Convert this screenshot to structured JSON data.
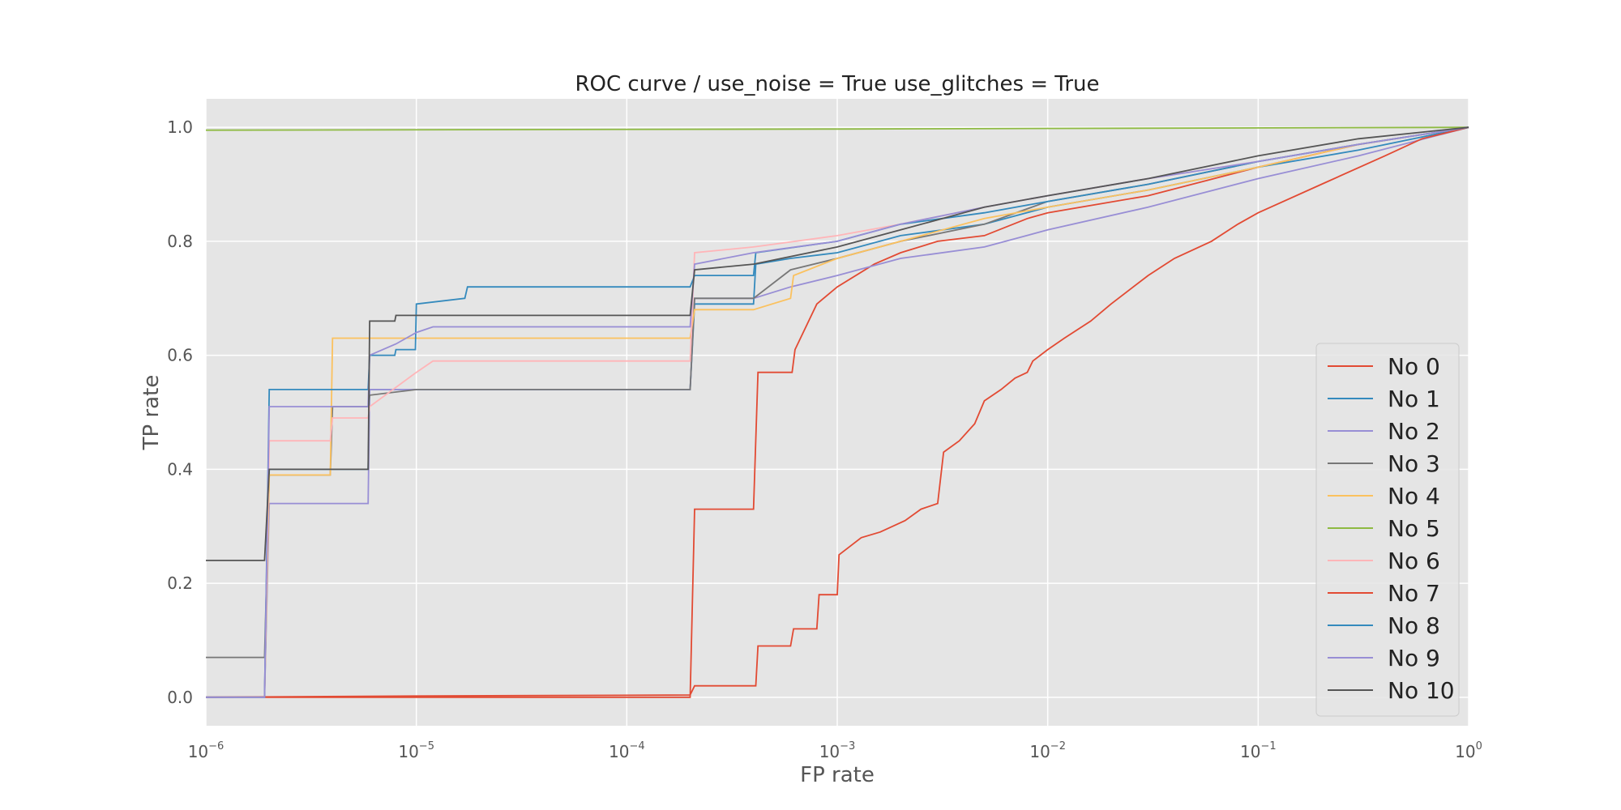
{
  "chart_data": {
    "type": "line",
    "title": "ROC curve / use_noise = True  use_glitches = True",
    "xlabel": "FP rate",
    "ylabel": "TP rate",
    "xscale": "log",
    "xlim": [
      1e-06,
      1
    ],
    "ylim": [
      -0.05,
      1.05
    ],
    "x_ticks": [
      {
        "base": "10",
        "exp": "−6"
      },
      {
        "base": "10",
        "exp": "−5"
      },
      {
        "base": "10",
        "exp": "−4"
      },
      {
        "base": "10",
        "exp": "−3"
      },
      {
        "base": "10",
        "exp": "−2"
      },
      {
        "base": "10",
        "exp": "−1"
      },
      {
        "base": "10",
        "exp": "0"
      }
    ],
    "y_ticks": [
      "0.0",
      "0.2",
      "0.4",
      "0.6",
      "0.8",
      "1.0"
    ],
    "y_tick_values": [
      0,
      0.2,
      0.4,
      0.6,
      0.8,
      1.0
    ],
    "grid": true,
    "legend_position": "lower-right",
    "series": [
      {
        "name": "No 0",
        "color": "#e24a33",
        "x": [
          1e-06,
          2e-06,
          4e-06,
          6e-06,
          1e-05,
          0.0002,
          0.00021,
          0.0004,
          0.00042,
          0.00061,
          0.00063,
          0.0008,
          0.001,
          0.0015,
          0.002,
          0.003,
          0.005,
          0.008,
          0.01,
          0.03,
          0.1,
          0.3,
          1
        ],
        "y": [
          0,
          0,
          0,
          0,
          0,
          0.0,
          0.33,
          0.33,
          0.57,
          0.57,
          0.61,
          0.69,
          0.72,
          0.76,
          0.78,
          0.8,
          0.81,
          0.84,
          0.85,
          0.88,
          0.93,
          0.97,
          1.0
        ]
      },
      {
        "name": "No 1",
        "color": "#348abd",
        "x": [
          1e-06,
          1.9e-06,
          2e-06,
          3.9e-06,
          4e-06,
          5.9e-06,
          6e-06,
          1e-05,
          0.0002,
          0.00021,
          0.0004,
          0.00041,
          0.0006,
          0.001,
          0.002,
          0.005,
          0.01,
          0.03,
          0.1,
          0.3,
          1
        ],
        "y": [
          0,
          0,
          0.4,
          0.4,
          0.4,
          0.4,
          0.54,
          0.54,
          0.54,
          0.69,
          0.69,
          0.76,
          0.77,
          0.78,
          0.81,
          0.83,
          0.86,
          0.89,
          0.93,
          0.96,
          1.0
        ]
      },
      {
        "name": "No 2",
        "color": "#988ed5",
        "x": [
          1e-06,
          1.9e-06,
          2e-06,
          3.9e-06,
          4e-06,
          5.9e-06,
          6e-06,
          1e-05,
          0.0002,
          0.00021,
          0.0004,
          0.0006,
          0.001,
          0.002,
          0.005,
          0.01,
          0.03,
          0.1,
          0.3,
          1
        ],
        "y": [
          0,
          0,
          0.34,
          0.34,
          0.34,
          0.34,
          0.54,
          0.54,
          0.54,
          0.7,
          0.7,
          0.72,
          0.74,
          0.77,
          0.79,
          0.82,
          0.86,
          0.91,
          0.95,
          1.0
        ]
      },
      {
        "name": "No 3",
        "color": "#777777",
        "x": [
          1e-06,
          1.9e-06,
          2e-06,
          3.9e-06,
          4e-06,
          5.9e-06,
          6e-06,
          1e-05,
          0.0002,
          0.00021,
          0.0004,
          0.0006,
          0.001,
          0.002,
          0.005,
          0.01,
          0.03,
          0.1,
          0.3,
          1
        ],
        "y": [
          0.07,
          0.07,
          0.39,
          0.39,
          0.51,
          0.51,
          0.53,
          0.54,
          0.54,
          0.7,
          0.7,
          0.75,
          0.77,
          0.8,
          0.83,
          0.87,
          0.9,
          0.94,
          0.97,
          1.0
        ]
      },
      {
        "name": "No 4",
        "color": "#fbc15e",
        "x": [
          1e-06,
          1.9e-06,
          2e-06,
          3.9e-06,
          4e-06,
          1e-05,
          0.0002,
          0.00021,
          0.0004,
          0.0006,
          0.00062,
          0.001,
          0.002,
          0.005,
          0.01,
          0.03,
          0.1,
          0.3,
          1
        ],
        "y": [
          0,
          0,
          0.39,
          0.39,
          0.63,
          0.63,
          0.63,
          0.68,
          0.68,
          0.7,
          0.74,
          0.77,
          0.8,
          0.84,
          0.86,
          0.89,
          0.93,
          0.97,
          1.0
        ]
      },
      {
        "name": "No 5",
        "color": "#8eba42",
        "x": [
          1e-06,
          0.001,
          1
        ],
        "y": [
          0.995,
          0.997,
          1.0
        ]
      },
      {
        "name": "No 6",
        "color": "#ffb5b8",
        "x": [
          1e-06,
          1.9e-06,
          2e-06,
          3.9e-06,
          4e-06,
          5.9e-06,
          6e-06,
          1e-05,
          1.2e-05,
          0.0002,
          0.00021,
          0.0004,
          0.001,
          0.002,
          0.005,
          0.01,
          0.03,
          0.1,
          0.3,
          1
        ],
        "y": [
          0,
          0,
          0.45,
          0.45,
          0.49,
          0.49,
          0.51,
          0.57,
          0.59,
          0.59,
          0.78,
          0.79,
          0.81,
          0.83,
          0.86,
          0.88,
          0.91,
          0.94,
          0.97,
          1.0
        ]
      },
      {
        "name": "No 7",
        "color": "#e24a33",
        "x": [
          1e-06,
          8e-06,
          0.0002,
          0.00021,
          0.00041,
          0.00042,
          0.0006,
          0.00062,
          0.0008,
          0.00082,
          0.001,
          0.00102,
          0.0013,
          0.0016,
          0.0021,
          0.0025,
          0.003,
          0.0032,
          0.0038,
          0.0045,
          0.005,
          0.006,
          0.007,
          0.008,
          0.0085,
          0.01,
          0.012,
          0.016,
          0.02,
          0.03,
          0.04,
          0.06,
          0.08,
          0.1,
          0.2,
          0.4,
          0.6,
          1
        ],
        "y": [
          0,
          0.002,
          0.004,
          0.02,
          0.02,
          0.09,
          0.09,
          0.12,
          0.12,
          0.18,
          0.18,
          0.25,
          0.28,
          0.29,
          0.31,
          0.33,
          0.34,
          0.43,
          0.45,
          0.48,
          0.52,
          0.54,
          0.56,
          0.57,
          0.59,
          0.61,
          0.63,
          0.66,
          0.69,
          0.74,
          0.77,
          0.8,
          0.83,
          0.85,
          0.9,
          0.95,
          0.98,
          1.0
        ]
      },
      {
        "name": "No 8",
        "color": "#348abd",
        "x": [
          1e-06,
          1.9e-06,
          2e-06,
          3.9e-06,
          4e-06,
          5.9e-06,
          6e-06,
          7.9e-06,
          8e-06,
          9.9e-06,
          1e-05,
          1.7e-05,
          1.75e-05,
          0.0002,
          0.00021,
          0.0004,
          0.00041,
          0.001,
          0.002,
          0.005,
          0.01,
          0.03,
          0.1,
          0.3,
          1
        ],
        "y": [
          0,
          0,
          0.54,
          0.54,
          0.54,
          0.54,
          0.6,
          0.6,
          0.61,
          0.61,
          0.69,
          0.7,
          0.72,
          0.72,
          0.74,
          0.74,
          0.78,
          0.8,
          0.83,
          0.85,
          0.87,
          0.9,
          0.94,
          0.97,
          1.0
        ]
      },
      {
        "name": "No 9",
        "color": "#988ed5",
        "x": [
          1e-06,
          1.9e-06,
          2e-06,
          3.9e-06,
          4e-06,
          5.9e-06,
          6e-06,
          8e-06,
          1e-05,
          1.2e-05,
          0.0002,
          0.00021,
          0.0004,
          0.001,
          0.002,
          0.005,
          0.01,
          0.03,
          0.1,
          0.3,
          1
        ],
        "y": [
          0,
          0,
          0.51,
          0.51,
          0.51,
          0.51,
          0.6,
          0.62,
          0.64,
          0.65,
          0.65,
          0.76,
          0.78,
          0.8,
          0.83,
          0.86,
          0.88,
          0.91,
          0.94,
          0.97,
          1.0
        ]
      },
      {
        "name": "No 10",
        "color": "#555555",
        "x": [
          1e-06,
          1.9e-06,
          2e-06,
          3.9e-06,
          4e-06,
          5.9e-06,
          6e-06,
          7.9e-06,
          8e-06,
          1e-05,
          0.0002,
          0.00021,
          0.0004,
          0.001,
          0.002,
          0.005,
          0.01,
          0.03,
          0.1,
          0.3,
          1
        ],
        "y": [
          0.24,
          0.24,
          0.4,
          0.4,
          0.4,
          0.4,
          0.66,
          0.66,
          0.67,
          0.67,
          0.67,
          0.75,
          0.76,
          0.79,
          0.82,
          0.86,
          0.88,
          0.91,
          0.95,
          0.98,
          1.0
        ]
      }
    ]
  }
}
